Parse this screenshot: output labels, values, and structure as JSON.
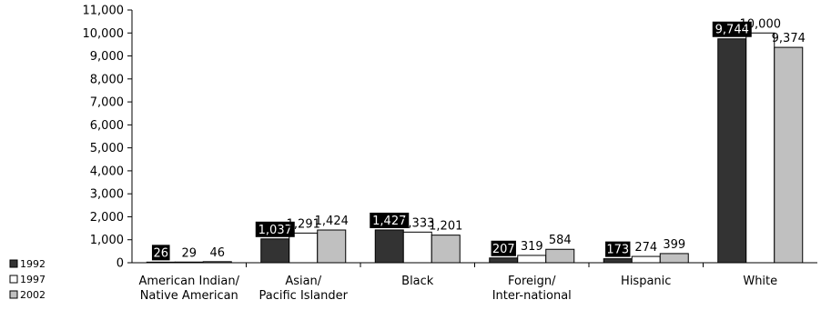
{
  "chart_data": {
    "type": "bar",
    "categories": [
      [
        "American Indian/",
        "Native American"
      ],
      [
        "Asian/",
        "Pacific Islander"
      ],
      [
        "Black"
      ],
      [
        "Foreign/",
        "Inter-national"
      ],
      [
        "Hispanic"
      ],
      [
        "White"
      ]
    ],
    "series": [
      {
        "name": "1992",
        "values": [
          26,
          1037,
          1427,
          207,
          173,
          9744
        ],
        "labels": [
          "26",
          "1,037",
          "1,427",
          "207",
          "173",
          "9,744"
        ],
        "fill": "#333333",
        "stroke": "#000000"
      },
      {
        "name": "1997",
        "values": [
          29,
          1291,
          1333,
          319,
          274,
          10000
        ],
        "labels": [
          "29",
          "1,291",
          "1,333",
          "319",
          "274",
          "10,000"
        ],
        "fill": "#ffffff",
        "stroke": "#000000"
      },
      {
        "name": "2002",
        "values": [
          46,
          1424,
          1201,
          584,
          399,
          9374
        ],
        "labels": [
          "46",
          "1,424",
          "1,201",
          "584",
          "399",
          "9,374"
        ],
        "fill": "#c0c0c0",
        "stroke": "#000000"
      }
    ],
    "ylim": [
      0,
      11000
    ],
    "yticks": [
      0,
      1000,
      2000,
      3000,
      4000,
      5000,
      6000,
      7000,
      8000,
      9000,
      10000,
      11000
    ],
    "ytick_labels": [
      "0",
      "1,000",
      "2,000",
      "3,000",
      "4,000",
      "5,000",
      "6,000",
      "7,000",
      "8,000",
      "9,000",
      "10,000",
      "11,000"
    ],
    "grid": false,
    "legend_position": "bottom-left"
  }
}
